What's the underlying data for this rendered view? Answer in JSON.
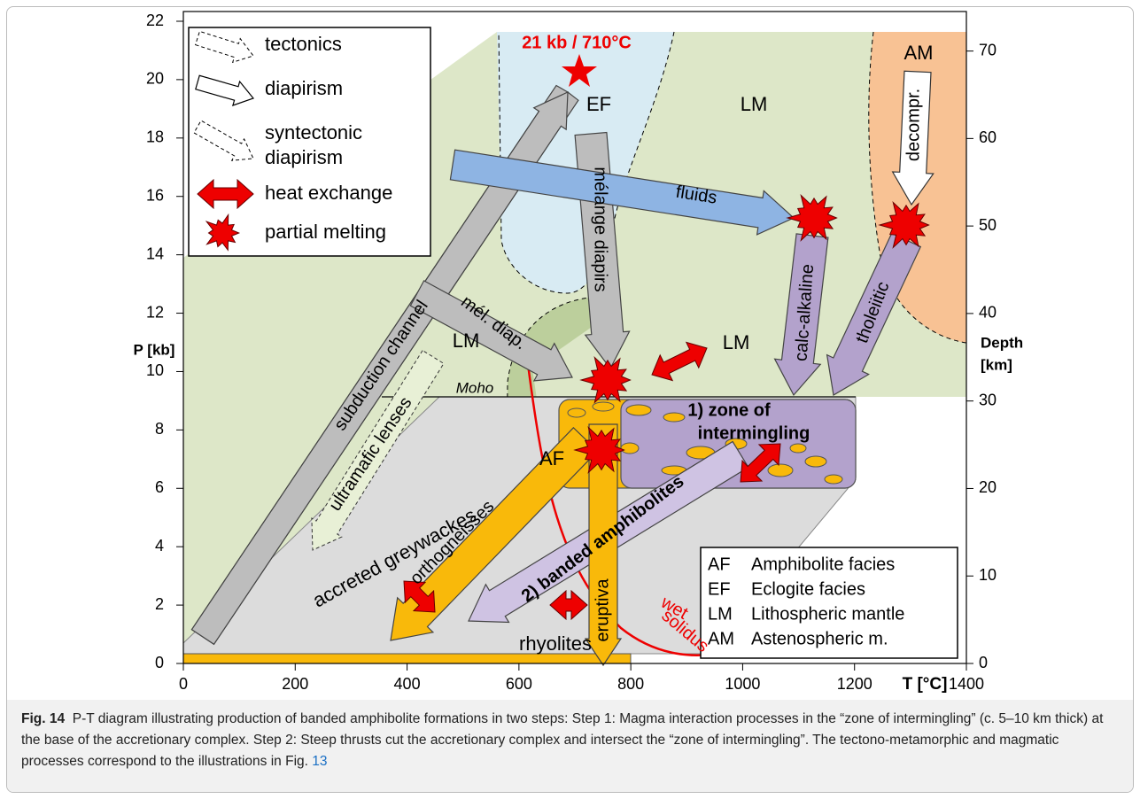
{
  "diagram": {
    "axes": {
      "x": {
        "label": "T [°C]",
        "lim": [
          0,
          1400
        ],
        "ticks": [
          0,
          200,
          400,
          600,
          800,
          1000,
          1200,
          1400
        ]
      },
      "y": {
        "label": "P [kb]",
        "lim": [
          0,
          22
        ],
        "ticks": [
          0,
          2,
          4,
          6,
          8,
          10,
          12,
          14,
          16,
          18,
          20,
          22
        ]
      },
      "y2": {
        "label": [
          "Depth",
          "[km]"
        ],
        "lim": [
          0,
          73.4
        ],
        "ticks": [
          0,
          10,
          20,
          30,
          40,
          50,
          60,
          70
        ]
      }
    },
    "peak": "21 kb / 710°C",
    "legend": [
      "tectonics",
      "diapirism",
      [
        "syntectonic",
        "diapirism"
      ],
      "heat exchange",
      "partial melting"
    ],
    "regions": {
      "ef": "EF",
      "lm_top": "LM",
      "am": "AM",
      "lm_left": "LM",
      "lm_mid": "LM",
      "af": "AF",
      "moho": "Moho",
      "greywackes": "accreted greywackes",
      "rhyolites": "rhyolites",
      "solidus": [
        "wet",
        "solidus"
      ]
    },
    "arrows": {
      "subduction": "subduction channel",
      "melange": "mélange diapirs",
      "mel_diap": "mél. diap.",
      "fluids": "fluids",
      "calc": "calc-alkaline",
      "thol": "tholeiitic",
      "decompr": "decompr.",
      "ultramafic": "ultramafic lenses",
      "ortho": "orthogneisses",
      "banded": "2) banded amphibolites",
      "eruptiva": "eruptiva"
    },
    "zone": [
      "1) zone of",
      "intermingling"
    ],
    "abbreviations": [
      {
        "code": "AF",
        "meaning": "Amphibolite facies"
      },
      {
        "code": "EF",
        "meaning": "Eclogite facies"
      },
      {
        "code": "LM",
        "meaning": "Lithospheric mantle"
      },
      {
        "code": "AM",
        "meaning": "Astenospheric m."
      }
    ],
    "caption": {
      "label": "Fig. 14",
      "text": "P-T diagram illustrating production of banded amphibolite formations in two steps: Step 1: Magma interaction processes in the “zone of intermingling” (c. 5–10 km thick) at the base of the accretionary complex. Step 2: Steep thrusts cut the accretionary complex and intersect the “zone of intermingling”. The tectono-metamorphic and magmatic processes correspond to the illustrations in Fig.",
      "link": "13"
    }
  }
}
